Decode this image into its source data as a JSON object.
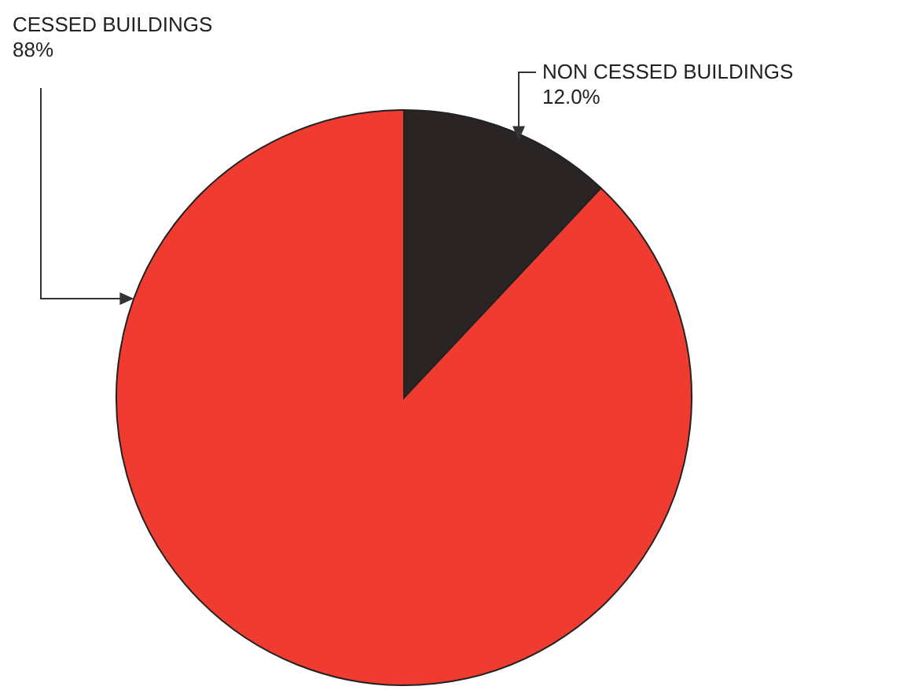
{
  "chart_data": {
    "type": "pie",
    "categories": [
      "CESSED BUILDINGS",
      "NON CESSED BUILDINGS"
    ],
    "values": [
      88,
      12
    ],
    "value_labels": [
      "88%",
      "12.0%"
    ],
    "colors": [
      "#f03c30",
      "#2b2424"
    ]
  }
}
